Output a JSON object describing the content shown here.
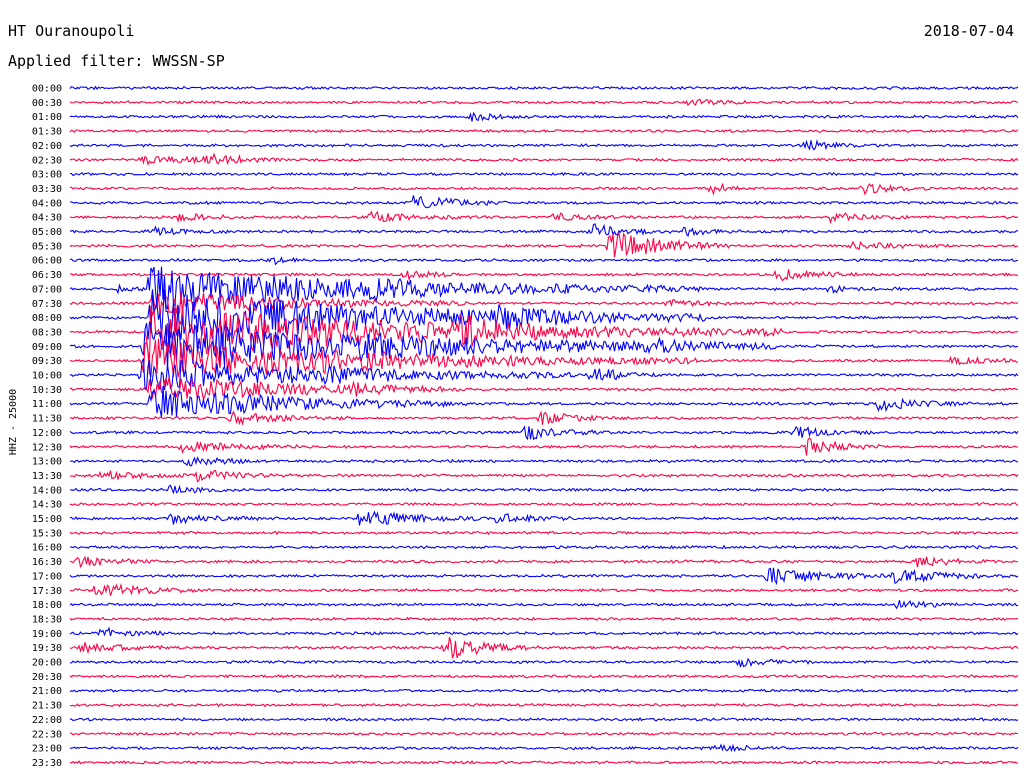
{
  "header": {
    "station": "HT Ouranoupoli",
    "date": "2018-07-04",
    "filter": "Applied filter: WWSSN-SP"
  },
  "chart_data": {
    "type": "helicorder",
    "ylabel": "HHZ - 25000",
    "colors": [
      "#0000ff",
      "#ff0044"
    ],
    "rows": [
      "00:00",
      "00:30",
      "01:00",
      "01:30",
      "02:00",
      "02:30",
      "03:00",
      "03:30",
      "04:00",
      "04:30",
      "05:00",
      "05:30",
      "06:00",
      "06:30",
      "07:00",
      "07:30",
      "08:00",
      "08:30",
      "09:00",
      "09:30",
      "10:00",
      "10:30",
      "11:00",
      "11:30",
      "12:00",
      "12:30",
      "13:00",
      "13:30",
      "14:00",
      "14:30",
      "15:00",
      "15:30",
      "16:00",
      "16:30",
      "17:00",
      "17:30",
      "18:00",
      "18:30",
      "19:00",
      "19:30",
      "20:00",
      "20:30",
      "21:00",
      "21:30",
      "22:00",
      "22:30",
      "23:00",
      "23:30"
    ],
    "x_range_minutes": [
      0,
      30
    ],
    "events": [
      {
        "row": 1,
        "minute": 19.6,
        "amp": 3.5,
        "dur": 0.8
      },
      {
        "row": 2,
        "minute": 12.6,
        "amp": 4.5,
        "dur": 0.8
      },
      {
        "row": 4,
        "minute": 23.3,
        "amp": 5,
        "dur": 0.8
      },
      {
        "row": 5,
        "minute": 2.3,
        "amp": 4,
        "dur": 1.5
      },
      {
        "row": 5,
        "minute": 4.2,
        "amp": 6,
        "dur": 1
      },
      {
        "row": 7,
        "minute": 20.3,
        "amp": 7,
        "dur": 0.4
      },
      {
        "row": 7,
        "minute": 25.1,
        "amp": 5,
        "dur": 1
      },
      {
        "row": 8,
        "minute": 10.9,
        "amp": 8,
        "dur": 1.2
      },
      {
        "row": 9,
        "minute": 3.4,
        "amp": 4,
        "dur": 1
      },
      {
        "row": 9,
        "minute": 9.5,
        "amp": 5,
        "dur": 1.2
      },
      {
        "row": 9,
        "minute": 15.3,
        "amp": 4,
        "dur": 0.8
      },
      {
        "row": 9,
        "minute": 24.1,
        "amp": 5,
        "dur": 1
      },
      {
        "row": 10,
        "minute": 16.5,
        "amp": 7,
        "dur": 1
      },
      {
        "row": 10,
        "minute": 19.4,
        "amp": 6,
        "dur": 0.6
      },
      {
        "row": 10,
        "minute": 2.6,
        "amp": 4,
        "dur": 1
      },
      {
        "row": 11,
        "minute": 17.1,
        "amp": 16,
        "dur": 1.5
      },
      {
        "row": 11,
        "minute": 24.8,
        "amp": 4,
        "dur": 1.2
      },
      {
        "row": 12,
        "minute": 6.5,
        "amp": 3,
        "dur": 0.5
      },
      {
        "row": 13,
        "minute": 22.4,
        "amp": 6,
        "dur": 1
      },
      {
        "row": 13,
        "minute": 10.6,
        "amp": 4,
        "dur": 0.8
      },
      {
        "row": 14,
        "minute": 1.5,
        "amp": 3,
        "dur": 1
      },
      {
        "row": 14,
        "minute": 2.5,
        "amp": 22,
        "dur": 7
      },
      {
        "row": 14,
        "minute": 9.6,
        "amp": 5,
        "dur": 0.8
      },
      {
        "row": 14,
        "minute": 24.0,
        "amp": 3,
        "dur": 1
      },
      {
        "row": 15,
        "minute": 2.6,
        "amp": 14,
        "dur": 4
      },
      {
        "row": 15,
        "minute": 18.9,
        "amp": 3,
        "dur": 1
      },
      {
        "row": 16,
        "minute": 2.6,
        "amp": 30,
        "dur": 7
      },
      {
        "row": 16,
        "minute": 13.4,
        "amp": 7,
        "dur": 1.5
      },
      {
        "row": 17,
        "minute": 2.5,
        "amp": 28,
        "dur": 8
      },
      {
        "row": 17,
        "minute": 12.3,
        "amp": 9,
        "dur": 1.2
      },
      {
        "row": 18,
        "minute": 2.4,
        "amp": 26,
        "dur": 8
      },
      {
        "row": 18,
        "minute": 9.0,
        "amp": 4,
        "dur": 1.5
      },
      {
        "row": 18,
        "minute": 18.3,
        "amp": 5,
        "dur": 1
      },
      {
        "row": 19,
        "minute": 2.4,
        "amp": 22,
        "dur": 7
      },
      {
        "row": 19,
        "minute": 7.8,
        "amp": 6,
        "dur": 1
      },
      {
        "row": 19,
        "minute": 27.8,
        "amp": 4,
        "dur": 1
      },
      {
        "row": 20,
        "minute": 2.3,
        "amp": 16,
        "dur": 6
      },
      {
        "row": 20,
        "minute": 7.7,
        "amp": 6,
        "dur": 1
      },
      {
        "row": 20,
        "minute": 16.5,
        "amp": 5,
        "dur": 1
      },
      {
        "row": 21,
        "minute": 2.5,
        "amp": 14,
        "dur": 4
      },
      {
        "row": 21,
        "minute": 9.0,
        "amp": 4,
        "dur": 1
      },
      {
        "row": 22,
        "minute": 2.6,
        "amp": 18,
        "dur": 4
      },
      {
        "row": 22,
        "minute": 25.6,
        "amp": 7,
        "dur": 1.2
      },
      {
        "row": 23,
        "minute": 5.1,
        "amp": 6,
        "dur": 1.5
      },
      {
        "row": 23,
        "minute": 14.9,
        "amp": 6,
        "dur": 1.2
      },
      {
        "row": 24,
        "minute": 14.4,
        "amp": 8,
        "dur": 1
      },
      {
        "row": 24,
        "minute": 22.9,
        "amp": 6,
        "dur": 1
      },
      {
        "row": 25,
        "minute": 3.5,
        "amp": 6,
        "dur": 1.5
      },
      {
        "row": 25,
        "minute": 23.3,
        "amp": 9,
        "dur": 1
      },
      {
        "row": 26,
        "minute": 3.7,
        "amp": 5,
        "dur": 1
      },
      {
        "row": 27,
        "minute": 1.0,
        "amp": 5,
        "dur": 1.2
      },
      {
        "row": 27,
        "minute": 4.0,
        "amp": 6,
        "dur": 1.2
      },
      {
        "row": 28,
        "minute": 3.2,
        "amp": 4,
        "dur": 0.8
      },
      {
        "row": 30,
        "minute": 3.2,
        "amp": 5,
        "dur": 1.2
      },
      {
        "row": 30,
        "minute": 9.2,
        "amp": 9,
        "dur": 1.5
      },
      {
        "row": 30,
        "minute": 13.5,
        "amp": 5,
        "dur": 1
      },
      {
        "row": 33,
        "minute": 0.3,
        "amp": 5,
        "dur": 1
      },
      {
        "row": 33,
        "minute": 26.8,
        "amp": 5,
        "dur": 1
      },
      {
        "row": 34,
        "minute": 22.1,
        "amp": 9,
        "dur": 1.5
      },
      {
        "row": 34,
        "minute": 26.1,
        "amp": 7,
        "dur": 1.5
      },
      {
        "row": 35,
        "minute": 0.8,
        "amp": 7,
        "dur": 1.5
      },
      {
        "row": 36,
        "minute": 26.2,
        "amp": 5,
        "dur": 0.8
      },
      {
        "row": 38,
        "minute": 1.0,
        "amp": 6,
        "dur": 0.8
      },
      {
        "row": 39,
        "minute": 0.4,
        "amp": 6,
        "dur": 1
      },
      {
        "row": 39,
        "minute": 11.9,
        "amp": 12,
        "dur": 1.2
      },
      {
        "row": 40,
        "minute": 21.2,
        "amp": 4,
        "dur": 1
      },
      {
        "row": 46,
        "minute": 20.4,
        "amp": 3,
        "dur": 1
      }
    ]
  }
}
